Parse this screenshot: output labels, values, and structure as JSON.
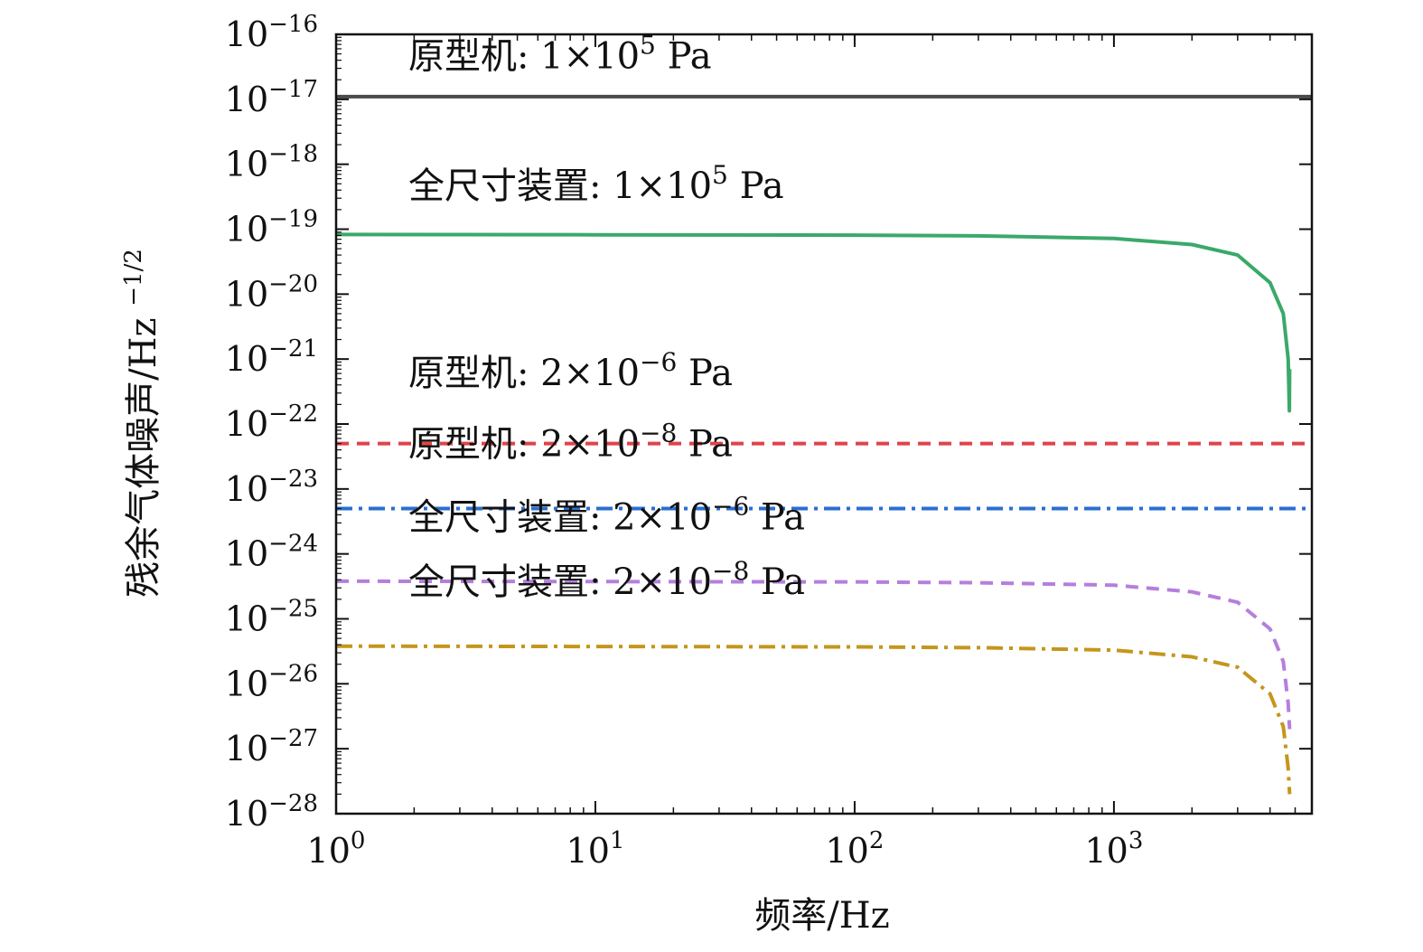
{
  "chart_data": {
    "type": "line",
    "title": "",
    "xlabel": "频率/Hz",
    "ylabel_base": "残余气体噪声/Hz",
    "ylabel_exponent": "−1/2",
    "xscale": "log",
    "yscale": "log",
    "xlim": [
      1,
      5800
    ],
    "ylim": [
      1e-28,
      1e-16
    ],
    "grid": false,
    "x_ticks": [
      {
        "value": 1,
        "base": "10",
        "exp": "0"
      },
      {
        "value": 10,
        "base": "10",
        "exp": "1"
      },
      {
        "value": 100,
        "base": "10",
        "exp": "2"
      },
      {
        "value": 1000,
        "base": "10",
        "exp": "3"
      }
    ],
    "y_ticks": [
      {
        "value": 1e-16,
        "base": "10",
        "exp": "−16"
      },
      {
        "value": 1e-17,
        "base": "10",
        "exp": "−17"
      },
      {
        "value": 1e-18,
        "base": "10",
        "exp": "−18"
      },
      {
        "value": 1e-19,
        "base": "10",
        "exp": "−19"
      },
      {
        "value": 1e-20,
        "base": "10",
        "exp": "−20"
      },
      {
        "value": 1e-21,
        "base": "10",
        "exp": "−21"
      },
      {
        "value": 1e-22,
        "base": "10",
        "exp": "−22"
      },
      {
        "value": 1e-23,
        "base": "10",
        "exp": "−23"
      },
      {
        "value": 1e-24,
        "base": "10",
        "exp": "−24"
      },
      {
        "value": 1e-25,
        "base": "10",
        "exp": "−25"
      },
      {
        "value": 1e-26,
        "base": "10",
        "exp": "−26"
      },
      {
        "value": 1e-27,
        "base": "10",
        "exp": "−27"
      },
      {
        "value": 1e-28,
        "base": "10",
        "exp": "−28"
      }
    ],
    "series": [
      {
        "name": "原型机: 1×10⁵ Pa",
        "label_main": "原型机: 1×10",
        "label_exp": "5",
        "label_unit": " Pa",
        "label_at": [
          1.9,
          3e-17
        ],
        "color": "#4a4a4a",
        "dash": "solid",
        "x": [
          1,
          5800
        ],
        "y": [
          1.1e-17,
          1.1e-17
        ]
      },
      {
        "name": "全尺寸装置: 1×10⁵ Pa",
        "label_main": "全尺寸装置: 1×10",
        "label_exp": "5",
        "label_unit": " Pa",
        "label_at": [
          1.9,
          3e-19
        ],
        "color": "#3aa96a",
        "dash": "solid",
        "x": [
          1,
          10,
          100,
          300,
          1000,
          2000,
          3000,
          4000,
          4500,
          4700,
          4750,
          4760
        ],
        "y": [
          8.3e-20,
          8.2e-20,
          8.1e-20,
          7.9e-20,
          7.2e-20,
          5.8e-20,
          4e-20,
          1.5e-20,
          5e-21,
          1e-21,
          1.6e-22,
          7e-22
        ]
      },
      {
        "name": "原型机: 2×10⁻⁶ Pa",
        "label_main": "原型机: 2×10",
        "label_exp": "−6",
        "label_unit": " Pa",
        "label_at": [
          1.9,
          4e-22
        ],
        "color": "#e0434a",
        "dash": "dashed",
        "x": [
          1,
          5800
        ],
        "y": [
          5e-23,
          5e-23
        ]
      },
      {
        "name": "原型机: 2×10⁻⁸ Pa",
        "label_main": "原型机: 2×10",
        "label_exp": "−8",
        "label_unit": " Pa",
        "label_at": [
          1.9,
          3.2e-23
        ],
        "color": "#2a6fd1",
        "dash": "dashdot",
        "x": [
          1,
          5800
        ],
        "y": [
          5e-24,
          5e-24
        ]
      },
      {
        "name": "全尺寸装置: 2×10⁻⁶ Pa",
        "label_main": "全尺寸装置: 2×10",
        "label_exp": "−6",
        "label_unit": " Pa",
        "label_at": [
          1.9,
          2.4e-24
        ],
        "color": "#b57fdc",
        "dash": "dashed",
        "x": [
          1,
          10,
          100,
          300,
          1000,
          2000,
          3000,
          4000,
          4500,
          4700,
          4760
        ],
        "y": [
          3.8e-25,
          3.75e-25,
          3.7e-25,
          3.6e-25,
          3.3e-25,
          2.6e-25,
          1.8e-25,
          7e-26,
          2.2e-26,
          5e-27,
          2e-27
        ]
      },
      {
        "name": "全尺寸装置: 2×10⁻⁸ Pa",
        "label_main": "全尺寸装置: 2×10",
        "label_exp": "−8",
        "label_unit": " Pa",
        "label_at": [
          1.9,
          2.4e-25
        ],
        "color": "#c4961c",
        "dash": "dashdot",
        "x": [
          1,
          10,
          100,
          300,
          1000,
          2000,
          3000,
          4000,
          4500,
          4700,
          4760
        ],
        "y": [
          3.8e-26,
          3.75e-26,
          3.7e-26,
          3.6e-26,
          3.3e-26,
          2.6e-26,
          1.8e-26,
          7e-27,
          2.2e-27,
          5e-28,
          2e-28
        ]
      }
    ]
  }
}
